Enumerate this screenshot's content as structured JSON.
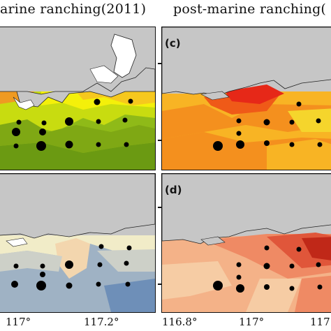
{
  "titles": {
    "left": "arine ranching(2011)",
    "right": "post-marine ranching("
  },
  "panels": {
    "top_right_letter": "(c)",
    "bottom_right_letter": "(d)"
  },
  "x_ticks": {
    "a": "117°",
    "b": "117.2°",
    "c": "116.8°",
    "d": "117°",
    "e": "117"
  },
  "colors": {
    "land": "#c6c6c6",
    "yellow_green_scale": [
      "#6b9a12",
      "#8fba18",
      "#c8dc10",
      "#f4f00a",
      "#f6c81e",
      "#ef9a22"
    ],
    "red_scale": [
      "#e62818",
      "#ef5a18",
      "#f4901e",
      "#f8b424",
      "#f5d52c"
    ],
    "blue_scale": [
      "#6e8fb8",
      "#9fb2c4",
      "#cdd0c8",
      "#f1ecc8",
      "#f3d6ae"
    ],
    "salmon_scale": [
      "#c02818",
      "#e0563a",
      "#ef8a64",
      "#f4b288",
      "#f6cca4"
    ],
    "station_marker": "#000000"
  }
}
